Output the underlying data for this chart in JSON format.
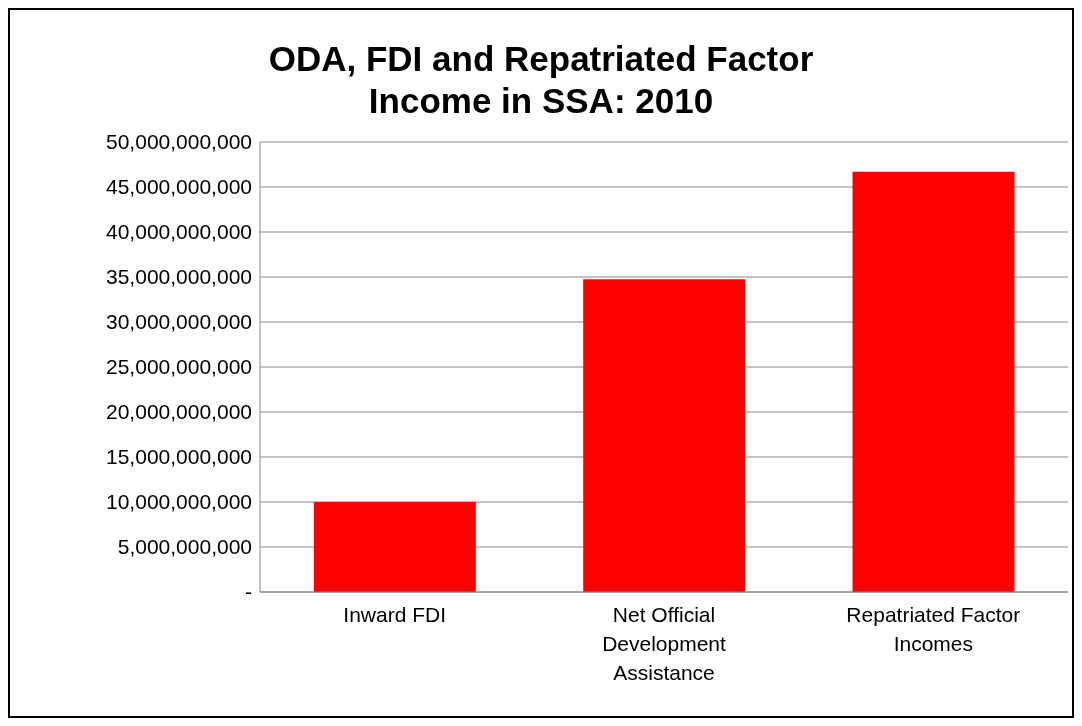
{
  "chart_data": {
    "type": "bar",
    "title": "ODA, FDI and Repatriated Factor Income in SSA: 2010",
    "categories": [
      "Inward FDI",
      "Net Official Development Assistance",
      "Repatriated Factor Incomes"
    ],
    "values": [
      10000000000,
      34750000000,
      46700000000
    ],
    "color": "#ff0000",
    "ylim": [
      0,
      50000000000
    ],
    "yticks": [
      {
        "value": 0,
        "label": "-"
      },
      {
        "value": 5000000000,
        "label": "5,000,000,000"
      },
      {
        "value": 10000000000,
        "label": "10,000,000,000"
      },
      {
        "value": 15000000000,
        "label": "15,000,000,000"
      },
      {
        "value": 20000000000,
        "label": "20,000,000,000"
      },
      {
        "value": 25000000000,
        "label": "25,000,000,000"
      },
      {
        "value": 30000000000,
        "label": "30,000,000,000"
      },
      {
        "value": 35000000000,
        "label": "35,000,000,000"
      },
      {
        "value": 40000000000,
        "label": "40,000,000,000"
      },
      {
        "value": 45000000000,
        "label": "45,000,000,000"
      },
      {
        "value": 50000000000,
        "label": "50,000,000,000"
      }
    ],
    "grid": "y",
    "legend": false
  }
}
